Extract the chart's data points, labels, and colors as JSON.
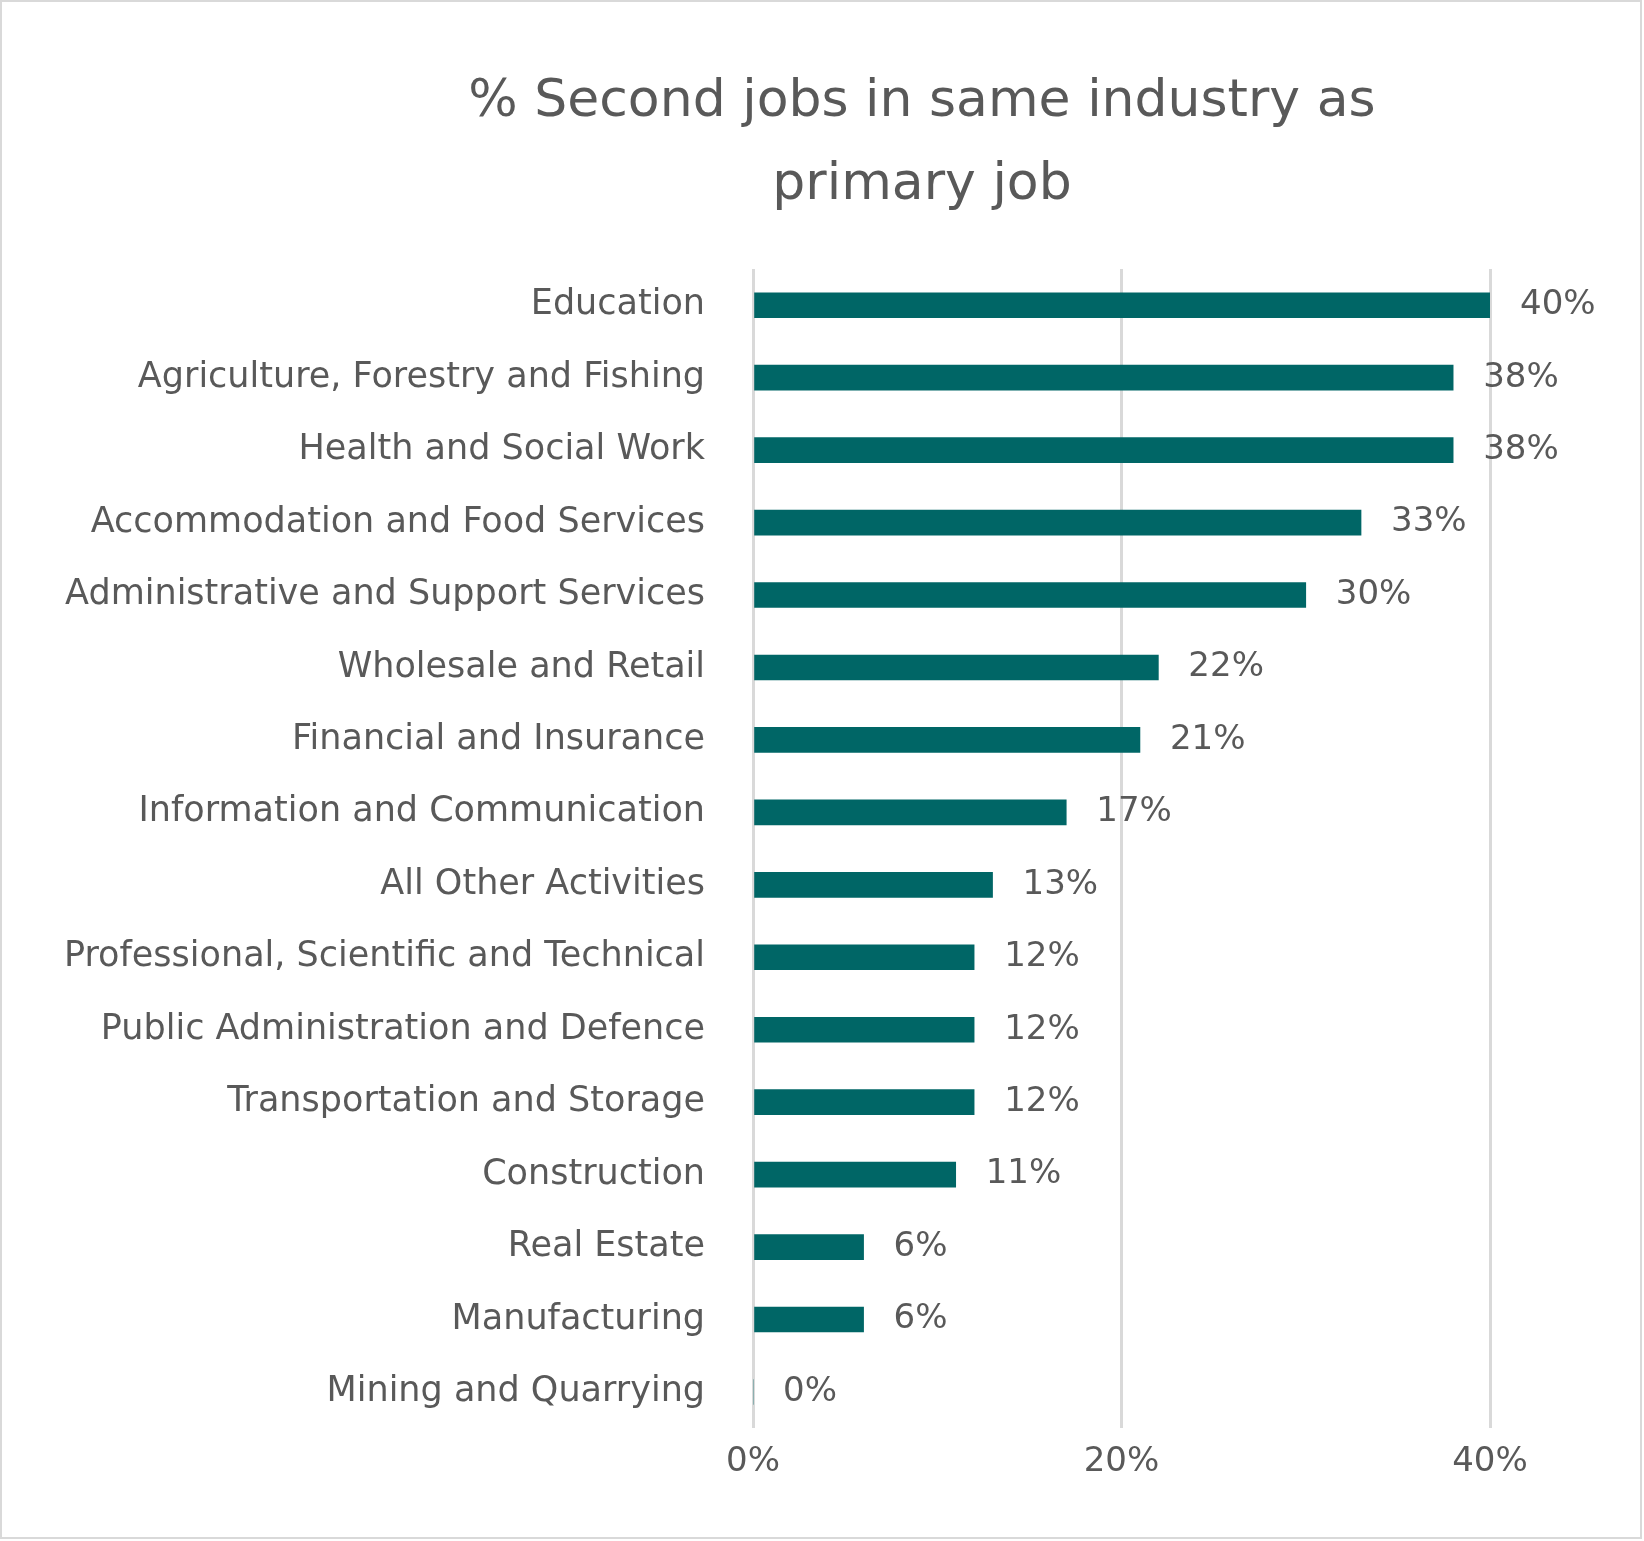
{
  "chart_data": {
    "type": "bar",
    "orientation": "horizontal",
    "title": "% Second jobs in same industry as primary job",
    "categories": [
      "Education",
      "Agriculture, Forestry and Fishing",
      "Health and Social Work",
      "Accommodation and Food Services",
      "Administrative and Support Services",
      "Wholesale and Retail",
      "Financial and Insurance",
      "Information and Communication",
      "All Other Activities",
      "Professional, Scientific and Technical",
      "Public Administration and Defence",
      "Transportation and Storage",
      "Construction",
      "Real Estate",
      "Manufacturing",
      "Mining and Quarrying"
    ],
    "values": [
      40,
      38,
      38,
      33,
      30,
      22,
      21,
      17,
      13,
      12,
      12,
      12,
      11,
      6,
      6,
      0
    ],
    "value_labels": [
      "40%",
      "38%",
      "38%",
      "33%",
      "30%",
      "22%",
      "21%",
      "17%",
      "13%",
      "12%",
      "12%",
      "12%",
      "11%",
      "6%",
      "6%",
      "0%"
    ],
    "color": "#006666",
    "xlim": [
      0,
      40
    ],
    "xticks": [
      {
        "value": 0,
        "label": "0%"
      },
      {
        "value": 20,
        "label": "20%"
      },
      {
        "value": 40,
        "label": "40%"
      }
    ],
    "grid": "x",
    "legend": false
  }
}
